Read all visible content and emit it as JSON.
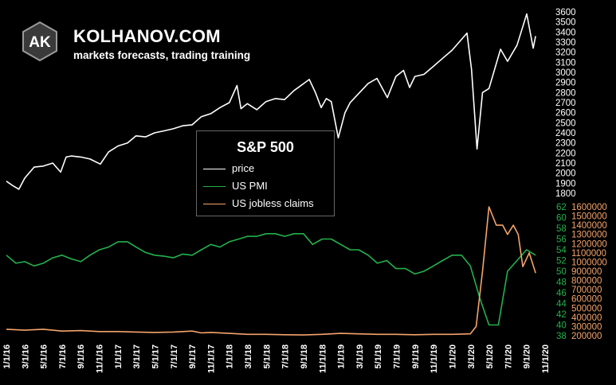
{
  "brand": {
    "logo_text": "AK",
    "name": "KOLHANOV.COM",
    "tagline": "markets forecasts, trading training"
  },
  "colors": {
    "background": "#000000",
    "price": "#ffffff",
    "pmi": "#22b14c",
    "claims": "#f4a46a"
  },
  "chart_data": {
    "type": "line",
    "title": "S&P 500",
    "legend_position": "center",
    "grid": false,
    "x_tick_labels": [
      "1/1/16",
      "3/1/16",
      "5/1/16",
      "7/1/16",
      "9/1/16",
      "11/1/16",
      "1/1/17",
      "3/1/17",
      "5/1/17",
      "7/1/17",
      "9/1/17",
      "11/1/17",
      "1/1/18",
      "3/1/18",
      "5/1/18",
      "7/1/18",
      "9/1/18",
      "11/1/18",
      "1/1/19",
      "3/1/19",
      "5/1/19",
      "7/1/19",
      "9/1/19",
      "11/1/19",
      "1/1/20",
      "3/1/20",
      "5/1/20",
      "7/1/20",
      "9/1/20",
      "11/1/20"
    ],
    "axes": {
      "price": {
        "ticks": [
          1800,
          1900,
          2000,
          2100,
          2200,
          2300,
          2400,
          2500,
          2600,
          2700,
          2800,
          2900,
          3000,
          3100,
          3200,
          3300,
          3400,
          3500,
          3600
        ],
        "range": [
          1800,
          3600
        ]
      },
      "pmi": {
        "ticks": [
          38,
          40,
          42,
          44,
          46,
          48,
          50,
          52,
          54,
          56,
          58,
          60,
          62
        ],
        "range": [
          38,
          62
        ]
      },
      "claims": {
        "ticks": [
          200000,
          300000,
          400000,
          500000,
          600000,
          700000,
          800000,
          900000,
          1000000,
          1100000,
          1200000,
          1300000,
          1400000,
          1500000,
          1600000
        ],
        "range": [
          200000,
          1600000
        ]
      }
    },
    "series": [
      {
        "name": "price",
        "axis": "price",
        "x": [
          "2016-01-01",
          "2016-01-20",
          "2016-02-11",
          "2016-03-01",
          "2016-04-01",
          "2016-05-01",
          "2016-06-01",
          "2016-06-27",
          "2016-07-15",
          "2016-08-01",
          "2016-09-01",
          "2016-10-01",
          "2016-11-04",
          "2016-12-01",
          "2017-01-01",
          "2017-02-01",
          "2017-03-01",
          "2017-04-01",
          "2017-05-01",
          "2017-06-01",
          "2017-07-01",
          "2017-08-01",
          "2017-09-01",
          "2017-10-01",
          "2017-11-01",
          "2017-12-01",
          "2018-01-01",
          "2018-01-26",
          "2018-02-08",
          "2018-03-01",
          "2018-04-01",
          "2018-05-01",
          "2018-06-01",
          "2018-07-01",
          "2018-08-01",
          "2018-09-20",
          "2018-10-10",
          "2018-10-29",
          "2018-11-15",
          "2018-12-01",
          "2018-12-24",
          "2019-01-15",
          "2019-02-01",
          "2019-03-01",
          "2019-04-01",
          "2019-04-30",
          "2019-06-03",
          "2019-07-01",
          "2019-07-26",
          "2019-08-15",
          "2019-09-01",
          "2019-10-01",
          "2019-11-01",
          "2019-12-01",
          "2020-01-01",
          "2020-02-19",
          "2020-03-05",
          "2020-03-23",
          "2020-04-10",
          "2020-05-01",
          "2020-06-08",
          "2020-07-01",
          "2020-08-01",
          "2020-09-02",
          "2020-09-23",
          "2020-10-01"
        ],
        "values": [
          1920,
          1880,
          1840,
          1950,
          2060,
          2070,
          2100,
          2010,
          2160,
          2170,
          2160,
          2140,
          2090,
          2210,
          2270,
          2300,
          2370,
          2360,
          2400,
          2420,
          2440,
          2470,
          2480,
          2560,
          2590,
          2650,
          2700,
          2870,
          2640,
          2690,
          2630,
          2710,
          2740,
          2730,
          2820,
          2930,
          2800,
          2650,
          2740,
          2710,
          2350,
          2600,
          2700,
          2790,
          2890,
          2940,
          2750,
          2960,
          3020,
          2850,
          2960,
          2980,
          3060,
          3140,
          3220,
          3390,
          3030,
          2240,
          2800,
          2840,
          3230,
          3110,
          3270,
          3580,
          3240,
          3360
        ]
      },
      {
        "name": "US PMI",
        "axis": "pmi",
        "x": [
          "2016-01-01",
          "2016-02-01",
          "2016-03-01",
          "2016-04-01",
          "2016-05-01",
          "2016-06-01",
          "2016-07-01",
          "2016-08-01",
          "2016-09-01",
          "2016-10-01",
          "2016-11-01",
          "2016-12-01",
          "2017-01-01",
          "2017-02-01",
          "2017-03-01",
          "2017-04-01",
          "2017-05-01",
          "2017-06-01",
          "2017-07-01",
          "2017-08-01",
          "2017-09-01",
          "2017-10-01",
          "2017-11-01",
          "2017-12-01",
          "2018-01-01",
          "2018-02-01",
          "2018-03-01",
          "2018-04-01",
          "2018-05-01",
          "2018-06-01",
          "2018-07-01",
          "2018-08-01",
          "2018-09-01",
          "2018-10-01",
          "2018-11-01",
          "2018-12-01",
          "2019-01-01",
          "2019-02-01",
          "2019-03-01",
          "2019-04-01",
          "2019-05-01",
          "2019-06-01",
          "2019-07-01",
          "2019-08-01",
          "2019-09-01",
          "2019-10-01",
          "2019-11-01",
          "2019-12-01",
          "2020-01-01",
          "2020-02-01",
          "2020-03-01",
          "2020-04-01",
          "2020-05-01",
          "2020-06-01",
          "2020-07-01",
          "2020-08-01",
          "2020-09-01",
          "2020-10-01"
        ],
        "values": [
          53,
          51.5,
          51.8,
          51,
          51.5,
          52.5,
          53,
          52.3,
          51.8,
          53,
          54,
          54.5,
          55.5,
          55.5,
          54.5,
          53.5,
          53,
          52.8,
          52.5,
          53.2,
          53,
          54,
          55,
          54.5,
          55.5,
          56,
          56.5,
          56.5,
          57,
          57,
          56.5,
          57,
          57,
          55,
          56,
          56,
          55,
          54,
          54,
          53,
          51.5,
          52,
          50.5,
          50.5,
          49.5,
          50,
          51,
          52,
          53,
          53,
          51,
          45,
          40,
          40,
          50,
          52,
          54,
          53
        ]
      },
      {
        "name": "US jobless claims",
        "axis": "claims",
        "x": [
          "2016-01-01",
          "2016-03-01",
          "2016-05-01",
          "2016-07-01",
          "2016-09-01",
          "2016-11-01",
          "2017-01-01",
          "2017-03-01",
          "2017-05-01",
          "2017-07-01",
          "2017-09-01",
          "2017-10-01",
          "2017-11-01",
          "2018-01-01",
          "2018-03-01",
          "2018-05-01",
          "2018-07-01",
          "2018-09-01",
          "2018-11-01",
          "2019-01-01",
          "2019-03-01",
          "2019-05-01",
          "2019-07-01",
          "2019-09-01",
          "2019-11-01",
          "2020-01-01",
          "2020-03-01",
          "2020-03-20",
          "2020-04-10",
          "2020-05-01",
          "2020-05-25",
          "2020-06-15",
          "2020-07-01",
          "2020-07-20",
          "2020-08-05",
          "2020-08-20",
          "2020-09-10",
          "2020-10-01"
        ],
        "values": [
          270000,
          260000,
          270000,
          250000,
          255000,
          245000,
          245000,
          240000,
          235000,
          240000,
          250000,
          230000,
          235000,
          225000,
          215000,
          215000,
          210000,
          208000,
          215000,
          225000,
          220000,
          215000,
          215000,
          210000,
          215000,
          215000,
          220000,
          300000,
          900000,
          1600000,
          1400000,
          1400000,
          1300000,
          1400000,
          1300000,
          950000,
          1100000,
          880000
        ]
      }
    ]
  }
}
